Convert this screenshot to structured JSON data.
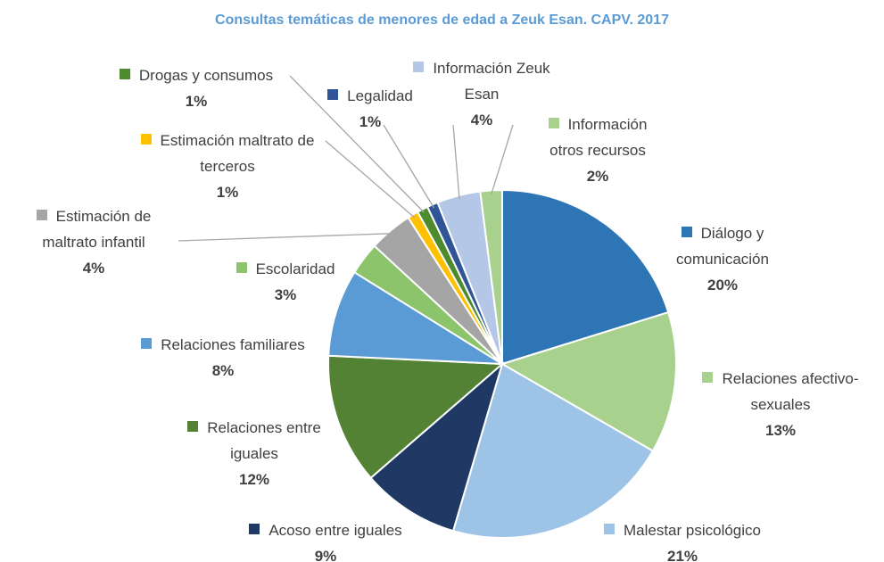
{
  "chart_data": {
    "type": "pie",
    "title": "Consultas temáticas de menores de edad a Zeuk Esan. CAPV. 2017",
    "categories": [
      "Diálogo y comunicación",
      "Relaciones afectivo-sexuales",
      "Malestar psicológico",
      "Acoso entre iguales",
      "Relaciones entre iguales",
      "Relaciones familiares",
      "Escolaridad",
      "Estimación de maltrato infantil",
      "Estimación maltrato de terceros",
      "Drogas y consumos",
      "Legalidad",
      "Información Zeuk Esan",
      "Información otros recursos"
    ],
    "values": [
      20,
      13,
      21,
      9,
      12,
      8,
      3,
      4,
      1,
      1,
      1,
      4,
      2
    ],
    "value_labels": [
      "20%",
      "13%",
      "21%",
      "9%",
      "12%",
      "8%",
      "3%",
      "4%",
      "1%",
      "1%",
      "1%",
      "4%",
      "2%"
    ],
    "colors": [
      "#2e75b6",
      "#a9d18e",
      "#9dc3e6",
      "#203864",
      "#548235",
      "#5b9bd5",
      "#8cc46c",
      "#a5a5a5",
      "#ffc000",
      "#4e8a2e",
      "#2f5597",
      "#b4c7e7",
      "#a9d18e"
    ]
  }
}
